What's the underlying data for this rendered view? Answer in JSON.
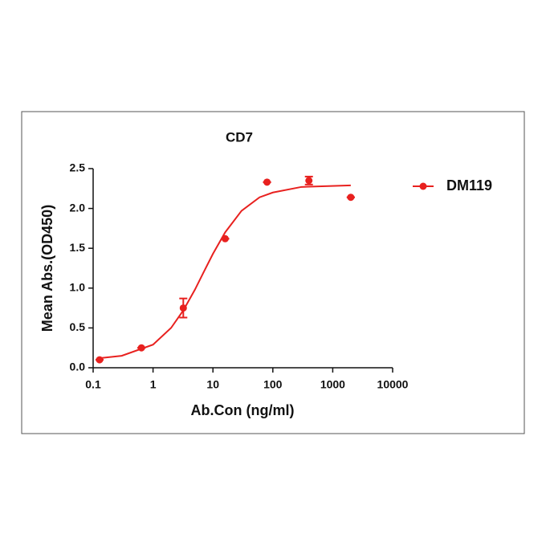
{
  "chart_data": {
    "type": "scatter",
    "title": "CD7",
    "xlabel": "Ab.Con (ng/ml)",
    "ylabel": "Mean Abs.(OD450)",
    "log_x": true,
    "xlim": [
      0.1,
      10000
    ],
    "xticks": [
      0.1,
      1,
      10,
      100,
      1000,
      10000
    ],
    "ylim": [
      0,
      2.5
    ],
    "yticks": [
      {
        "value": 0,
        "label": "0.0"
      },
      0.5,
      {
        "value": 1,
        "label": "1.0"
      },
      1.5,
      {
        "value": 2,
        "label": "2.0"
      },
      2.5
    ],
    "legend": "right",
    "series": [
      {
        "name": "DM119",
        "color": "#e8211f",
        "x": [
          0.128,
          0.64,
          3.2,
          16,
          80,
          400,
          2000
        ],
        "values": [
          0.1,
          0.25,
          0.75,
          1.62,
          2.33,
          2.35,
          2.14
        ],
        "errors": [
          0,
          0,
          0.12,
          0,
          0,
          0.05,
          0
        ],
        "curve": {
          "x": [
            0.128,
            0.3,
            1,
            2,
            3.2,
            5,
            7,
            10,
            16,
            30,
            60,
            100,
            300,
            2000
          ],
          "values": [
            0.12,
            0.15,
            0.29,
            0.5,
            0.72,
            0.98,
            1.2,
            1.43,
            1.7,
            1.97,
            2.14,
            2.2,
            2.27,
            2.29
          ]
        }
      }
    ]
  }
}
